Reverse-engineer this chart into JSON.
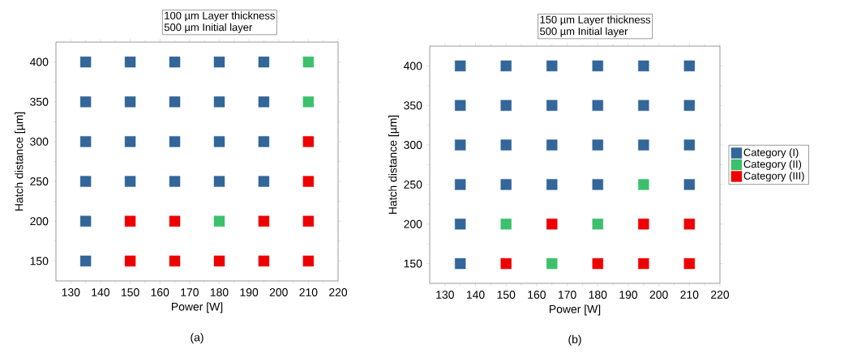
{
  "chart_data": [
    {
      "type": "scatter",
      "title": "100 µm Layer thickness",
      "subtitle": "500 µm Initial layer",
      "xlabel": "Power [W]",
      "ylabel": "Hatch distance [µm]",
      "annotations": [
        "(a)"
      ],
      "xlim": [
        125,
        220
      ],
      "ylim": [
        125,
        425
      ],
      "xticks": [
        130,
        140,
        150,
        160,
        170,
        180,
        190,
        200,
        210,
        220
      ],
      "yticks": [
        150,
        200,
        250,
        300,
        350,
        400
      ],
      "marker": "square",
      "legend": false,
      "series": [
        {
          "color": "#336699",
          "x": [
            135,
            135,
            135,
            135,
            135,
            135,
            150,
            150,
            150,
            150,
            165,
            165,
            165,
            165,
            180,
            180,
            180,
            180,
            195,
            195,
            195,
            195
          ],
          "values": [
            400,
            350,
            300,
            250,
            200,
            150,
            400,
            350,
            300,
            250,
            400,
            350,
            300,
            250,
            400,
            350,
            300,
            250,
            400,
            350,
            300,
            250
          ]
        },
        {
          "color": "#3cc06c",
          "x": [
            210,
            210,
            180
          ],
          "values": [
            400,
            350,
            200
          ]
        },
        {
          "color": "#ee0000",
          "x": [
            210,
            210,
            150,
            165,
            195,
            210,
            150,
            165,
            180,
            195,
            210
          ],
          "values": [
            300,
            250,
            200,
            200,
            200,
            200,
            150,
            150,
            150,
            150,
            150
          ]
        }
      ]
    },
    {
      "type": "scatter",
      "title": "150 µm Layer thickness",
      "subtitle": "500 µm Initial layer",
      "xlabel": "Power [W]",
      "ylabel": "Hatch distance [µm]",
      "annotations": [
        "(b)"
      ],
      "xlim": [
        125,
        220
      ],
      "ylim": [
        125,
        425
      ],
      "xticks": [
        130,
        140,
        150,
        160,
        170,
        180,
        190,
        200,
        210,
        220
      ],
      "yticks": [
        150,
        200,
        250,
        300,
        350,
        400
      ],
      "marker": "square",
      "legend": "right",
      "series": [
        {
          "name": "Category (I)",
          "color": "#336699",
          "x": [
            135,
            135,
            135,
            135,
            135,
            135,
            150,
            150,
            150,
            150,
            165,
            165,
            165,
            165,
            180,
            180,
            180,
            180,
            195,
            195,
            195,
            210,
            210,
            210,
            210
          ],
          "values": [
            400,
            350,
            300,
            250,
            200,
            150,
            400,
            350,
            300,
            250,
            400,
            350,
            300,
            250,
            400,
            350,
            300,
            250,
            400,
            350,
            300,
            400,
            350,
            300,
            250
          ]
        },
        {
          "name": "Category (II)",
          "color": "#3cc06c",
          "x": [
            195,
            150,
            180,
            165
          ],
          "values": [
            250,
            200,
            200,
            150
          ]
        },
        {
          "name": "Category (III)",
          "color": "#ee0000",
          "x": [
            165,
            195,
            210,
            150,
            180,
            195,
            210
          ],
          "values": [
            200,
            200,
            200,
            150,
            150,
            150,
            150
          ]
        }
      ]
    }
  ]
}
